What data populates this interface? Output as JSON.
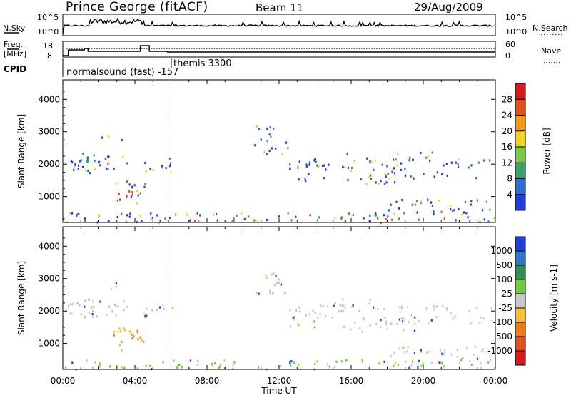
{
  "header": {
    "station": "Prince George (fitACF)",
    "beam": "Beam 11",
    "date": "29/Aug/2009"
  },
  "noise_panel": {
    "left_label": "N.Sky",
    "left_ticks": [
      "10^5",
      "10^0"
    ],
    "right_label": "N.Search",
    "right_ticks": [
      "10^5",
      "10^0"
    ]
  },
  "freq_panel": {
    "left_label_line1": "Freq.",
    "left_label_line2": "[MHz]",
    "left_ticks": [
      "18",
      "8"
    ],
    "right_label": "Nave",
    "right_ticks": [
      "60",
      "0"
    ],
    "cpid_label": "CPID",
    "cpid_text_1": "normalsound (fast) -157",
    "cpid_text_2": "themis 3300"
  },
  "chart_data": [
    {
      "type": "heatmap",
      "title": "",
      "panel": "Power",
      "xlabel": "",
      "ylabel": "Slant Range [km]",
      "x_ticks": [
        "00:00",
        "04:00",
        "08:00",
        "12:00",
        "16:00",
        "20:00",
        "00:00"
      ],
      "y_ticks": [
        1000,
        2000,
        3000,
        4000
      ],
      "ylim": [
        200,
        4600
      ],
      "colorbar_label": "Power [dB]",
      "colorbar_ticks": [
        4,
        8,
        12,
        16,
        20,
        24,
        28
      ],
      "colors": [
        "#1f3fd8",
        "#2d6fd0",
        "#3f9f6a",
        "#7fc94a",
        "#f2d21e",
        "#f39a1a",
        "#e0521d",
        "#d7191c"
      ]
    },
    {
      "type": "heatmap",
      "title": "",
      "panel": "Velocity",
      "xlabel": "Time UT",
      "ylabel": "Slant Range [km]",
      "x_ticks": [
        "00:00",
        "04:00",
        "08:00",
        "12:00",
        "16:00",
        "20:00",
        "00:00"
      ],
      "y_ticks": [
        1000,
        2000,
        3000,
        4000
      ],
      "ylim": [
        200,
        4600
      ],
      "colorbar_label": "Velocity [m s-1]",
      "colorbar_ticks": [
        "1000",
        "500",
        "100",
        "25",
        "-25",
        "-100",
        "-500",
        "-1000"
      ],
      "colors": [
        "#1f3fd8",
        "#2f76c7",
        "#2f8f4e",
        "#6fcf3a",
        "#c8c8c8",
        "#f2c037",
        "#f07a1a",
        "#e0521d",
        "#d7191c"
      ]
    }
  ],
  "time_axis_label": "Time UT"
}
